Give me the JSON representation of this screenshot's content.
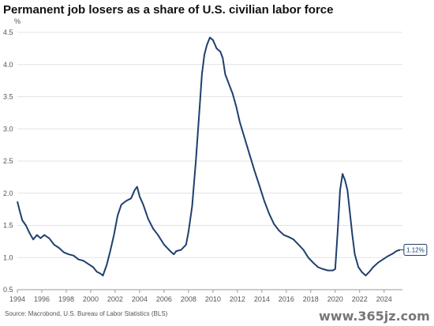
{
  "chart_data": {
    "type": "line",
    "title": "Permanent job losers as a share of U.S. civilian labor force",
    "ylabel": "%",
    "xlabel": "",
    "ylim": [
      0.5,
      4.5
    ],
    "xlim": [
      1994,
      2025.5
    ],
    "y_ticks": [
      0.5,
      1.0,
      1.5,
      2.0,
      2.5,
      3.0,
      3.5,
      4.0,
      4.5
    ],
    "y_tick_labels": [
      "0.5",
      "1.0",
      "1.5",
      "2.0",
      "2.5",
      "3.0",
      "3.5",
      "4.0",
      "4.5"
    ],
    "x_ticks": [
      1994,
      1996,
      1998,
      2000,
      2002,
      2004,
      2006,
      2008,
      2010,
      2012,
      2014,
      2016,
      2018,
      2020,
      2022,
      2024
    ],
    "x_tick_labels": [
      "1994",
      "1996",
      "1998",
      "2000",
      "2002",
      "2004",
      "2006",
      "2008",
      "2010",
      "2012",
      "2014",
      "2016",
      "2018",
      "2020",
      "2022",
      "2024"
    ],
    "grid": "horizontal",
    "series": [
      {
        "color": "#1f3f6e",
        "points": [
          [
            1994.0,
            1.87
          ],
          [
            1994.2,
            1.72
          ],
          [
            1994.4,
            1.58
          ],
          [
            1994.7,
            1.5
          ],
          [
            1995.0,
            1.38
          ],
          [
            1995.3,
            1.28
          ],
          [
            1995.6,
            1.35
          ],
          [
            1995.9,
            1.3
          ],
          [
            1996.2,
            1.35
          ],
          [
            1996.6,
            1.3
          ],
          [
            1997.0,
            1.2
          ],
          [
            1997.4,
            1.15
          ],
          [
            1997.8,
            1.08
          ],
          [
            1998.2,
            1.05
          ],
          [
            1998.6,
            1.03
          ],
          [
            1999.0,
            0.97
          ],
          [
            1999.4,
            0.95
          ],
          [
            1999.8,
            0.9
          ],
          [
            2000.2,
            0.85
          ],
          [
            2000.5,
            0.78
          ],
          [
            2000.8,
            0.75
          ],
          [
            2001.0,
            0.72
          ],
          [
            2001.3,
            0.88
          ],
          [
            2001.6,
            1.1
          ],
          [
            2001.9,
            1.35
          ],
          [
            2002.2,
            1.65
          ],
          [
            2002.5,
            1.82
          ],
          [
            2002.9,
            1.88
          ],
          [
            2003.3,
            1.92
          ],
          [
            2003.6,
            2.05
          ],
          [
            2003.8,
            2.1
          ],
          [
            2004.0,
            1.95
          ],
          [
            2004.3,
            1.82
          ],
          [
            2004.7,
            1.6
          ],
          [
            2005.1,
            1.45
          ],
          [
            2005.5,
            1.35
          ],
          [
            2006.0,
            1.2
          ],
          [
            2006.5,
            1.1
          ],
          [
            2006.8,
            1.05
          ],
          [
            2007.0,
            1.1
          ],
          [
            2007.4,
            1.12
          ],
          [
            2007.8,
            1.2
          ],
          [
            2008.0,
            1.4
          ],
          [
            2008.3,
            1.8
          ],
          [
            2008.6,
            2.5
          ],
          [
            2008.9,
            3.3
          ],
          [
            2009.1,
            3.85
          ],
          [
            2009.3,
            4.15
          ],
          [
            2009.5,
            4.3
          ],
          [
            2009.75,
            4.42
          ],
          [
            2010.0,
            4.38
          ],
          [
            2010.3,
            4.25
          ],
          [
            2010.6,
            4.2
          ],
          [
            2010.8,
            4.1
          ],
          [
            2011.0,
            3.85
          ],
          [
            2011.3,
            3.7
          ],
          [
            2011.6,
            3.55
          ],
          [
            2011.9,
            3.35
          ],
          [
            2012.2,
            3.1
          ],
          [
            2012.6,
            2.85
          ],
          [
            2013.0,
            2.6
          ],
          [
            2013.4,
            2.35
          ],
          [
            2013.8,
            2.12
          ],
          [
            2014.2,
            1.88
          ],
          [
            2014.6,
            1.68
          ],
          [
            2015.0,
            1.52
          ],
          [
            2015.4,
            1.42
          ],
          [
            2015.8,
            1.35
          ],
          [
            2016.2,
            1.32
          ],
          [
            2016.6,
            1.28
          ],
          [
            2017.0,
            1.2
          ],
          [
            2017.4,
            1.12
          ],
          [
            2017.8,
            1.0
          ],
          [
            2018.2,
            0.92
          ],
          [
            2018.6,
            0.85
          ],
          [
            2019.0,
            0.82
          ],
          [
            2019.4,
            0.8
          ],
          [
            2019.8,
            0.8
          ],
          [
            2020.0,
            0.82
          ],
          [
            2020.2,
            1.4
          ],
          [
            2020.4,
            2.05
          ],
          [
            2020.6,
            2.3
          ],
          [
            2020.8,
            2.2
          ],
          [
            2021.0,
            2.05
          ],
          [
            2021.2,
            1.7
          ],
          [
            2021.4,
            1.35
          ],
          [
            2021.6,
            1.05
          ],
          [
            2021.9,
            0.85
          ],
          [
            2022.2,
            0.77
          ],
          [
            2022.5,
            0.72
          ],
          [
            2022.8,
            0.78
          ],
          [
            2023.1,
            0.85
          ],
          [
            2023.5,
            0.92
          ],
          [
            2023.9,
            0.97
          ],
          [
            2024.3,
            1.02
          ],
          [
            2024.7,
            1.06
          ],
          [
            2025.0,
            1.1
          ],
          [
            2025.3,
            1.12
          ]
        ]
      }
    ],
    "end_label": "1.12%",
    "source": "Source: Macrobond, U.S. Bureau of Labor Statistics (BLS)"
  },
  "watermark": "www.365jz.com"
}
